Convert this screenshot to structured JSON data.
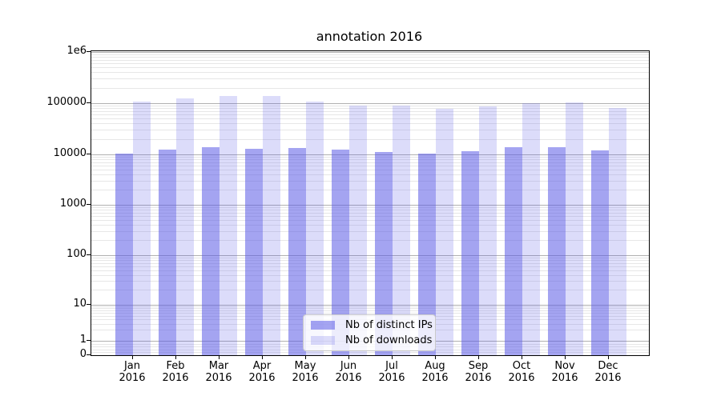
{
  "chart_data": {
    "type": "bar",
    "title": "annotation 2016",
    "yscale": "symlog",
    "ylim": [
      0,
      1000000
    ],
    "grid": {
      "major": true,
      "minor": true
    },
    "legend_position": "lower center",
    "categories": [
      "Jan 2016",
      "Feb 2016",
      "Mar 2016",
      "Apr 2016",
      "May 2016",
      "Jun 2016",
      "Jul 2016",
      "Aug 2016",
      "Sep 2016",
      "Oct 2016",
      "Nov 2016",
      "Dec 2016"
    ],
    "yticks": [
      {
        "label": "1e6",
        "value": 1000000
      },
      {
        "label": "100000",
        "value": 100000
      },
      {
        "label": "10000",
        "value": 10000
      },
      {
        "label": "1000",
        "value": 1000
      },
      {
        "label": "100",
        "value": 100
      },
      {
        "label": "10",
        "value": 10
      },
      {
        "label": "1",
        "value": 1
      },
      {
        "label": "0",
        "value": 0
      }
    ],
    "series": [
      {
        "name": "Nb of distinct IPs",
        "base_color": "#5a5ae6",
        "alpha": 0.55,
        "values": [
          10500,
          12500,
          13800,
          13000,
          13500,
          12500,
          11000,
          10500,
          11500,
          13800,
          13800,
          12000
        ]
      },
      {
        "name": "Nb of downloads",
        "base_color": "#5a5ae6",
        "alpha": 0.21,
        "values": [
          107000,
          122000,
          140000,
          140000,
          107000,
          90000,
          90000,
          78000,
          86000,
          100000,
          104000,
          81000
        ]
      }
    ]
  }
}
